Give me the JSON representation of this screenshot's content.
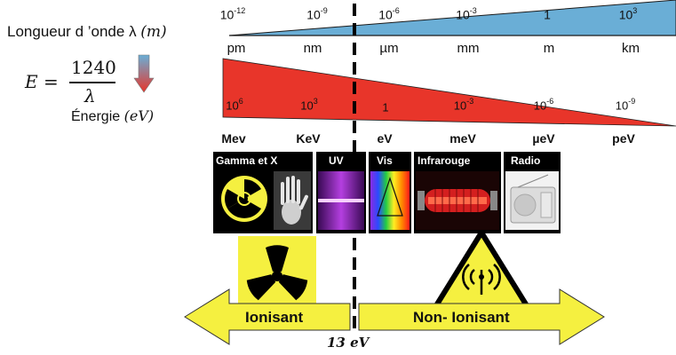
{
  "wavelength": {
    "label_text": "Longueur d ’onde λ",
    "label_unit": "(m)",
    "powers": [
      {
        "base": "10",
        "exp": "-12"
      },
      {
        "base": "10",
        "exp": "-9"
      },
      {
        "base": "10",
        "exp": "-6"
      },
      {
        "base": "10",
        "exp": "-3"
      },
      {
        "base": "1",
        "exp": ""
      },
      {
        "base": "10",
        "exp": "3"
      }
    ],
    "units": [
      "pm",
      "nm",
      "µm",
      "mm",
      "m",
      "km"
    ],
    "color": "#6aaed6"
  },
  "energy": {
    "formula_lhs": "E =",
    "formula_num": "1240",
    "formula_den": "λ",
    "label_text": "Énergie",
    "label_unit": "(eV)",
    "powers": [
      {
        "base": "10",
        "exp": "6"
      },
      {
        "base": "10",
        "exp": "3"
      },
      {
        "base": "1",
        "exp": ""
      },
      {
        "base": "10",
        "exp": "-3"
      },
      {
        "base": "10",
        "exp": "-6"
      },
      {
        "base": "10",
        "exp": "-9"
      }
    ],
    "units": [
      "Mev",
      "KeV",
      "eV",
      "meV",
      "µeV",
      "peV"
    ],
    "color": "#e8352a"
  },
  "categories": [
    "Gamma et X",
    "UV",
    "Vis",
    "Infrarouge",
    "Radio"
  ],
  "arrows": {
    "left": "Ionisant",
    "right": "Non- Ionisant",
    "threshold": "13 eV",
    "color": "#f5f040"
  }
}
